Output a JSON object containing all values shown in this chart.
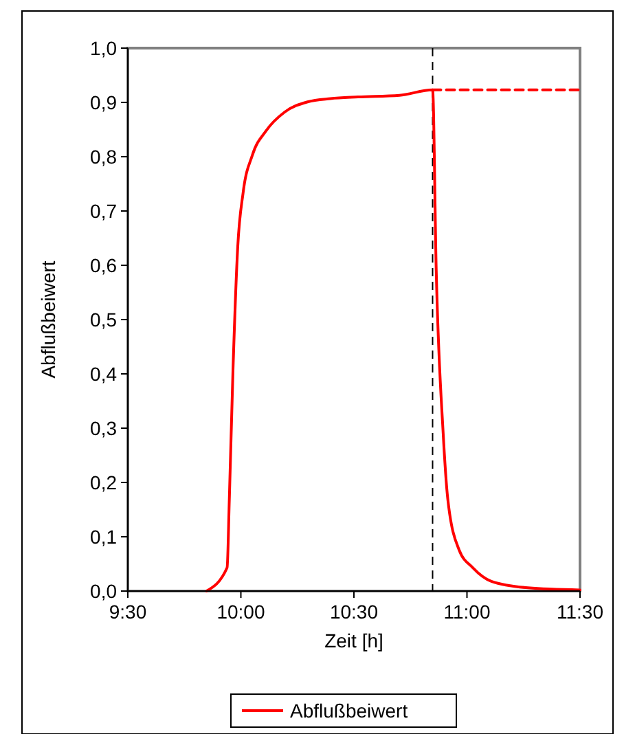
{
  "chart_data": {
    "type": "line",
    "xlabel": "Zeit [h]",
    "ylabel": "Abflußbeiwert",
    "xlim": [
      9.5,
      11.5
    ],
    "xticks": [
      {
        "value": 9.5,
        "label": "9:30"
      },
      {
        "value": 10,
        "label": "10:00"
      },
      {
        "value": 10.5,
        "label": "10:30"
      },
      {
        "value": 11,
        "label": "11:00"
      },
      {
        "value": 11.5,
        "label": "11:30"
      }
    ],
    "ylim": [
      0,
      1
    ],
    "yticks": [
      {
        "value": 0,
        "label": "0,0"
      },
      {
        "value": 0.1,
        "label": "0,1"
      },
      {
        "value": 0.2,
        "label": "0,2"
      },
      {
        "value": 0.3,
        "label": "0,3"
      },
      {
        "value": 0.4,
        "label": "0,4"
      },
      {
        "value": 0.5,
        "label": "0,5"
      },
      {
        "value": 0.6,
        "label": "0,6"
      },
      {
        "value": 0.7,
        "label": "0,7"
      },
      {
        "value": 0.8,
        "label": "0,8"
      },
      {
        "value": 0.9,
        "label": "0,9"
      },
      {
        "value": 1,
        "label": "1,0"
      }
    ],
    "grid": false,
    "legend": "bottom",
    "series": [
      {
        "name": "Abflußbeiwert",
        "color": "#ff0000",
        "line_style": "solid",
        "x": [
          9.848,
          9.939,
          9.949,
          9.965,
          9.986,
          10.01,
          10.051,
          10.112,
          10.193,
          10.295,
          10.396,
          10.518,
          10.701,
          10.848,
          10.864,
          10.894,
          10.915,
          10.965,
          11.026,
          11.108,
          11.27,
          11.5
        ],
        "values": [
          0,
          0.043,
          0.17,
          0.405,
          0.633,
          0.734,
          0.803,
          0.848,
          0.882,
          0.901,
          0.907,
          0.91,
          0.913,
          0.923,
          0.591,
          0.296,
          0.17,
          0.076,
          0.043,
          0.018,
          0.006,
          0.002
        ]
      },
      {
        "color": "#ff0000",
        "line_style": "dashed",
        "x": [
          10.848,
          11.5
        ],
        "values": [
          0.923,
          0.923
        ]
      }
    ],
    "ref_lines": [
      {
        "axis": "x",
        "value": 10.848,
        "color": "#000000",
        "line_style": "dashed"
      }
    ]
  }
}
